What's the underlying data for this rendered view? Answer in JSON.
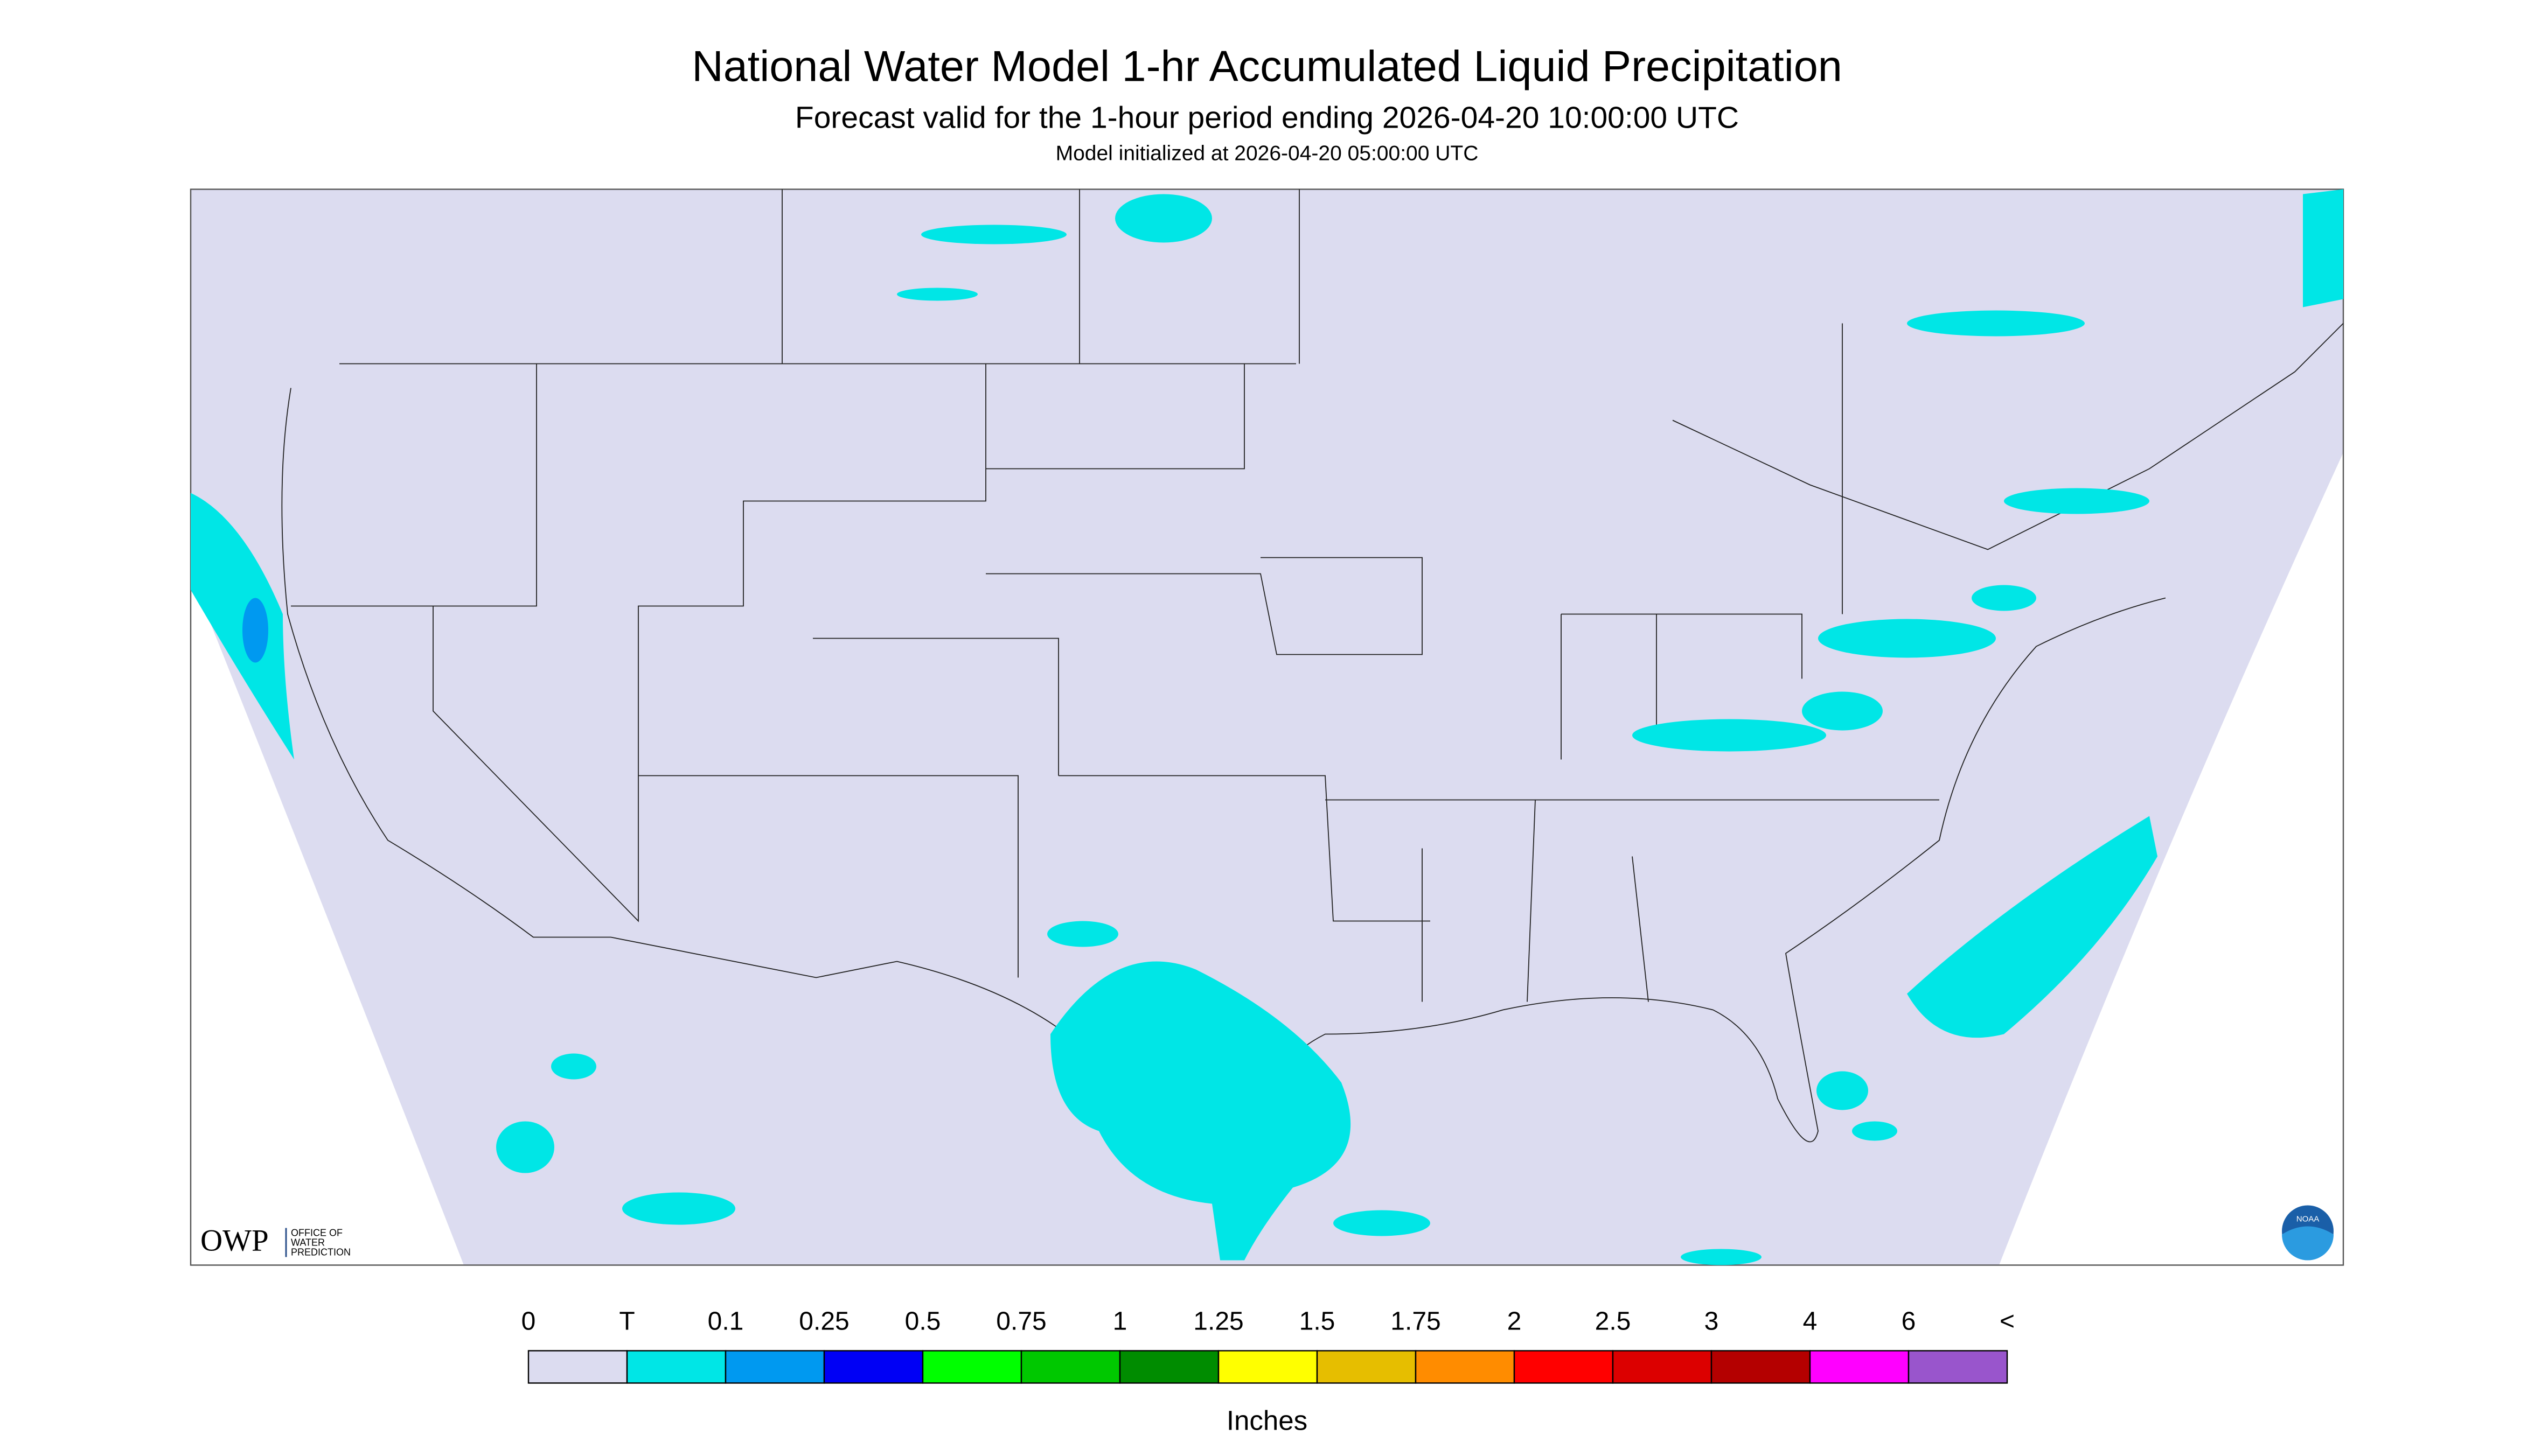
{
  "header": {
    "title": "National Water Model 1-hr Accumulated Liquid Precipitation",
    "subtitle": "Forecast valid for the 1-hour period ending 2026-04-20 10:00:00 UTC",
    "note": "Model initialized at 2026-04-20 05:00:00 UTC"
  },
  "logos": {
    "owp": "OWP",
    "owp_text": [
      "OFFICE OF",
      "WATER",
      "PREDICTION"
    ],
    "noaa": "NOAA"
  },
  "legend": {
    "labels": [
      "0",
      "T",
      "0.1",
      "0.25",
      "0.5",
      "0.75",
      "1",
      "1.25",
      "1.5",
      "1.75",
      "2",
      "2.5",
      "3",
      "4",
      "6",
      "<"
    ],
    "colors": [
      "#dcdcf0",
      "#00e6e6",
      "#0099f0",
      "#0000f5",
      "#00ff00",
      "#00c800",
      "#008c00",
      "#ffff00",
      "#e6be00",
      "#ff8c00",
      "#ff0000",
      "#dc0000",
      "#b40000",
      "#ff00ff",
      "#9955cc"
    ],
    "units": "Inches"
  }
}
